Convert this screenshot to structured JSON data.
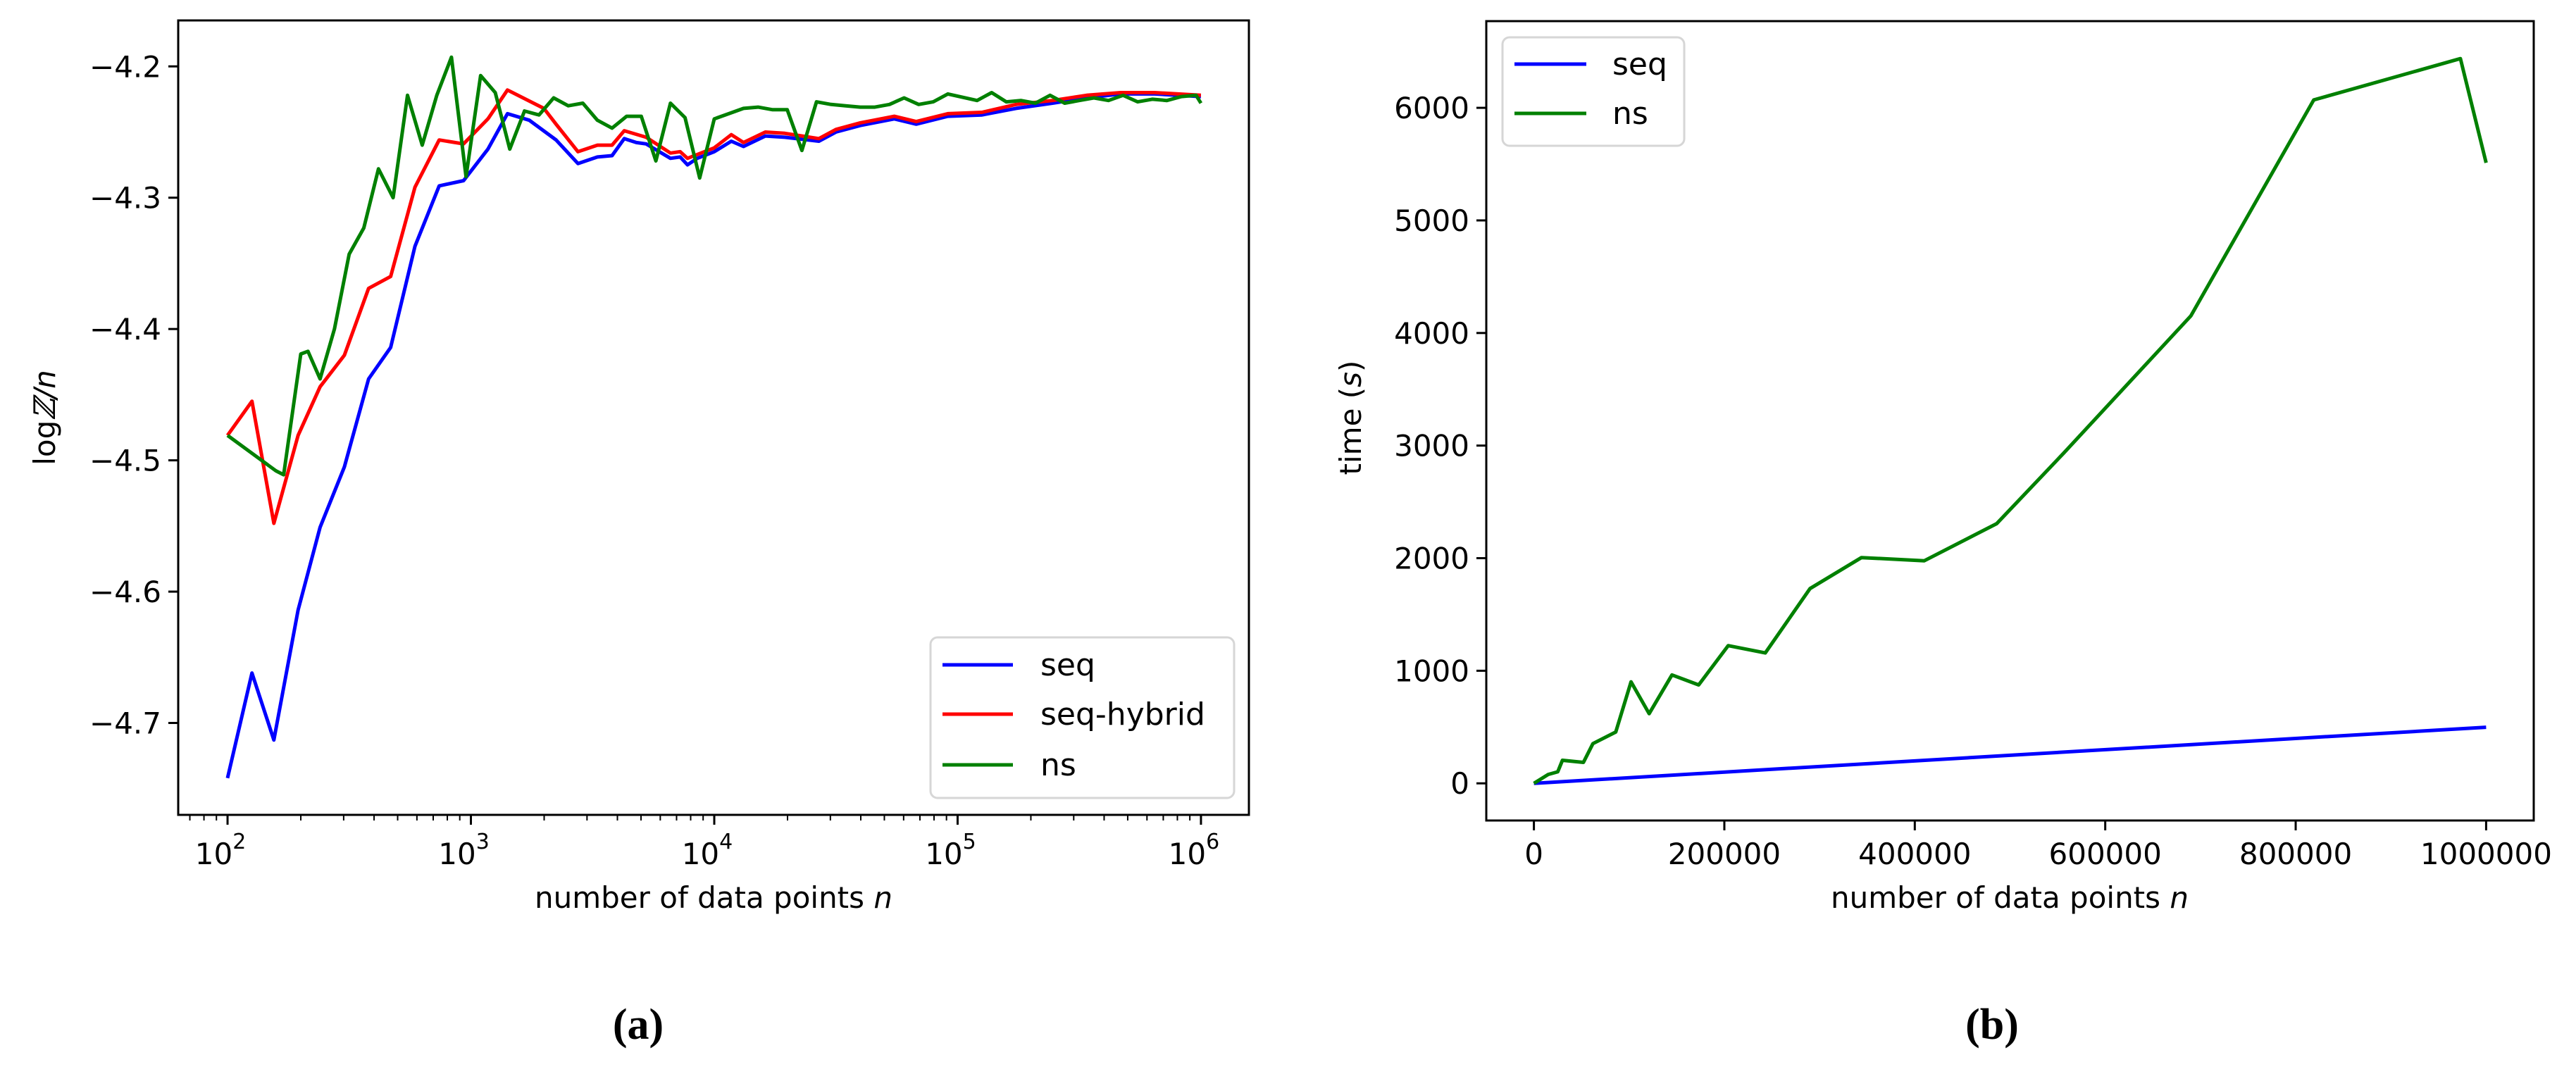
{
  "figure": {
    "panels": [
      {
        "caption": "(a)",
        "ylabel_prefix": "log",
        "ylabel_symbol": "ℤ",
        "ylabel_suffix": "/n",
        "xlabel_text": "number of data points ",
        "xlabel_var": "n",
        "legend": [
          "seq",
          "seq-hybrid",
          "ns"
        ]
      },
      {
        "caption": "(b)",
        "ylabel_text": "time (",
        "ylabel_var": "s",
        "ylabel_close": ")",
        "xlabel_text": "number of data points ",
        "xlabel_var": "n",
        "legend": [
          "seq",
          "ns"
        ]
      }
    ]
  },
  "chart_data": [
    {
      "type": "line",
      "title": "(a)",
      "xlabel": "number of data points n",
      "ylabel": "log Z / n",
      "xscale": "log",
      "xlim": [
        62.7,
        1574000
      ],
      "ylim": [
        -4.77,
        -4.165
      ],
      "xticks": [
        100,
        1000,
        10000,
        100000,
        1000000
      ],
      "xtick_labels": [
        "10^2",
        "10^3",
        "10^4",
        "10^5",
        "10^6"
      ],
      "yticks": [
        -4.7,
        -4.6,
        -4.5,
        -4.4,
        -4.3,
        -4.2
      ],
      "ytick_labels": [
        "−4.7",
        "−4.6",
        "−4.5",
        "−4.4",
        "−4.3",
        "−4.2"
      ],
      "grid": false,
      "legend_position": "lower right",
      "series": [
        {
          "name": "seq",
          "color": "#0000ff",
          "x": [
            100,
            126,
            155,
            195,
            240,
            302,
            380,
            468,
            589,
            741,
            933,
            1175,
            1413,
            1738,
            2239,
            2754,
            3311,
            3802,
            4266,
            4786,
            5248,
            6607,
            7244,
            7762,
            8511,
            10000,
            11749,
            13183,
            16218,
            19498,
            26915,
            31623,
            39811,
            54954,
            67608,
            91201,
            125893,
            173780,
            245471,
            338844,
            467735,
            645654,
            1000000
          ],
          "y": [
            -4.742,
            -4.662,
            -4.713,
            -4.614,
            -4.551,
            -4.505,
            -4.438,
            -4.414,
            -4.337,
            -4.291,
            -4.287,
            -4.263,
            -4.236,
            -4.241,
            -4.256,
            -4.274,
            -4.269,
            -4.268,
            -4.255,
            -4.258,
            -4.259,
            -4.27,
            -4.269,
            -4.275,
            -4.27,
            -4.265,
            -4.257,
            -4.261,
            -4.253,
            -4.254,
            -4.257,
            -4.25,
            -4.245,
            -4.24,
            -4.244,
            -4.238,
            -4.237,
            -4.232,
            -4.228,
            -4.224,
            -4.221,
            -4.221,
            -4.223
          ]
        },
        {
          "name": "seq-hybrid",
          "color": "#ff0000",
          "x": [
            100,
            126,
            155,
            195,
            240,
            302,
            380,
            468,
            589,
            741,
            933,
            1175,
            1413,
            1995,
            2239,
            2754,
            3311,
            3802,
            4266,
            5248,
            6607,
            7244,
            7762,
            10000,
            11749,
            13183,
            16218,
            19498,
            26915,
            31623,
            39811,
            54954,
            67608,
            91201,
            125893,
            173780,
            245471,
            338844,
            467735,
            645654,
            1000000
          ],
          "y": [
            -4.481,
            -4.455,
            -4.548,
            -4.481,
            -4.444,
            -4.42,
            -4.369,
            -4.36,
            -4.292,
            -4.256,
            -4.259,
            -4.24,
            -4.218,
            -4.232,
            -4.244,
            -4.265,
            -4.26,
            -4.26,
            -4.249,
            -4.254,
            -4.266,
            -4.265,
            -4.27,
            -4.262,
            -4.252,
            -4.258,
            -4.25,
            -4.251,
            -4.255,
            -4.248,
            -4.243,
            -4.238,
            -4.242,
            -4.236,
            -4.235,
            -4.229,
            -4.226,
            -4.222,
            -4.22,
            -4.22,
            -4.222
          ]
        },
        {
          "name": "ns",
          "color": "#008000",
          "x": [
            100,
            158,
            170,
            200,
            214,
            240,
            275,
            316,
            363,
            417,
            479,
            549,
            631,
            724,
            832,
            955,
            1096,
            1259,
            1445,
            1660,
            1905,
            2188,
            2512,
            2884,
            3311,
            3802,
            4365,
            5012,
            5754,
            6607,
            7586,
            8710,
            10000,
            11482,
            13183,
            15136,
            17378,
            19953,
            22909,
            26303,
            30200,
            34674,
            39811,
            45709,
            52481,
            60256,
            69183,
            79433,
            91201,
            120226,
            138038,
            158489,
            181970,
            208930,
            239883,
            275423,
            316228,
            363078,
            416869,
            478630,
            549541,
            630957,
            724436,
            831764,
            954993,
            1000000
          ],
          "y": [
            -4.481,
            -4.508,
            -4.511,
            -4.419,
            -4.417,
            -4.438,
            -4.4,
            -4.343,
            -4.323,
            -4.278,
            -4.3,
            -4.222,
            -4.26,
            -4.222,
            -4.193,
            -4.284,
            -4.207,
            -4.22,
            -4.263,
            -4.234,
            -4.237,
            -4.224,
            -4.23,
            -4.228,
            -4.241,
            -4.247,
            -4.238,
            -4.238,
            -4.272,
            -4.228,
            -4.239,
            -4.285,
            -4.24,
            -4.236,
            -4.232,
            -4.231,
            -4.233,
            -4.233,
            -4.264,
            -4.227,
            -4.229,
            -4.23,
            -4.231,
            -4.231,
            -4.229,
            -4.224,
            -4.229,
            -4.227,
            -4.221,
            -4.226,
            -4.22,
            -4.227,
            -4.226,
            -4.228,
            -4.222,
            -4.228,
            -4.226,
            -4.224,
            -4.226,
            -4.222,
            -4.227,
            -4.225,
            -4.226,
            -4.223,
            -4.222,
            -4.228
          ]
        }
      ]
    },
    {
      "type": "line",
      "title": "(b)",
      "xlabel": "number of data points n",
      "ylabel": "time (s)",
      "xscale": "linear",
      "xlim": [
        -50000,
        1050000
      ],
      "ylim": [
        -330,
        6770
      ],
      "xticks": [
        0,
        200000,
        400000,
        600000,
        800000,
        1000000
      ],
      "xtick_labels": [
        "0",
        "200000",
        "400000",
        "600000",
        "800000",
        "1000000"
      ],
      "yticks": [
        0,
        1000,
        2000,
        3000,
        4000,
        5000,
        6000
      ],
      "ytick_labels": [
        "0",
        "1000",
        "2000",
        "3000",
        "4000",
        "5000",
        "6000"
      ],
      "grid": false,
      "legend_position": "upper left",
      "series": [
        {
          "name": "seq",
          "color": "#0000ff",
          "x": [
            0,
            1000000
          ],
          "y": [
            0,
            498
          ]
        },
        {
          "name": "ns",
          "color": "#008000",
          "x": [
            0,
            15000,
            25000,
            30000,
            52000,
            62000,
            86000,
            102000,
            121000,
            145000,
            173000,
            204000,
            243000,
            290000,
            344000,
            410000,
            486000,
            556000,
            690000,
            819000,
            973000,
            1000000
          ],
          "y": [
            0,
            79,
            102,
            205,
            186,
            353,
            456,
            902,
            619,
            963,
            874,
            1223,
            1158,
            1730,
            2005,
            1977,
            2307,
            2930,
            4153,
            6070,
            6437,
            5512
          ]
        }
      ]
    }
  ]
}
